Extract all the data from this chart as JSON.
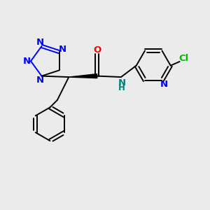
{
  "bg_color": "#ebebeb",
  "bond_color": "#000000",
  "N_color": "#0000ff",
  "O_color": "#ff0000",
  "Cl_color": "#00bb00",
  "NH_color": "#008080",
  "font_size_atom": 9.5,
  "lw": 1.4,
  "fig_w": 3.0,
  "fig_h": 3.0,
  "dpi": 100,
  "xlim": [
    0,
    10
  ],
  "ylim": [
    0,
    10
  ]
}
